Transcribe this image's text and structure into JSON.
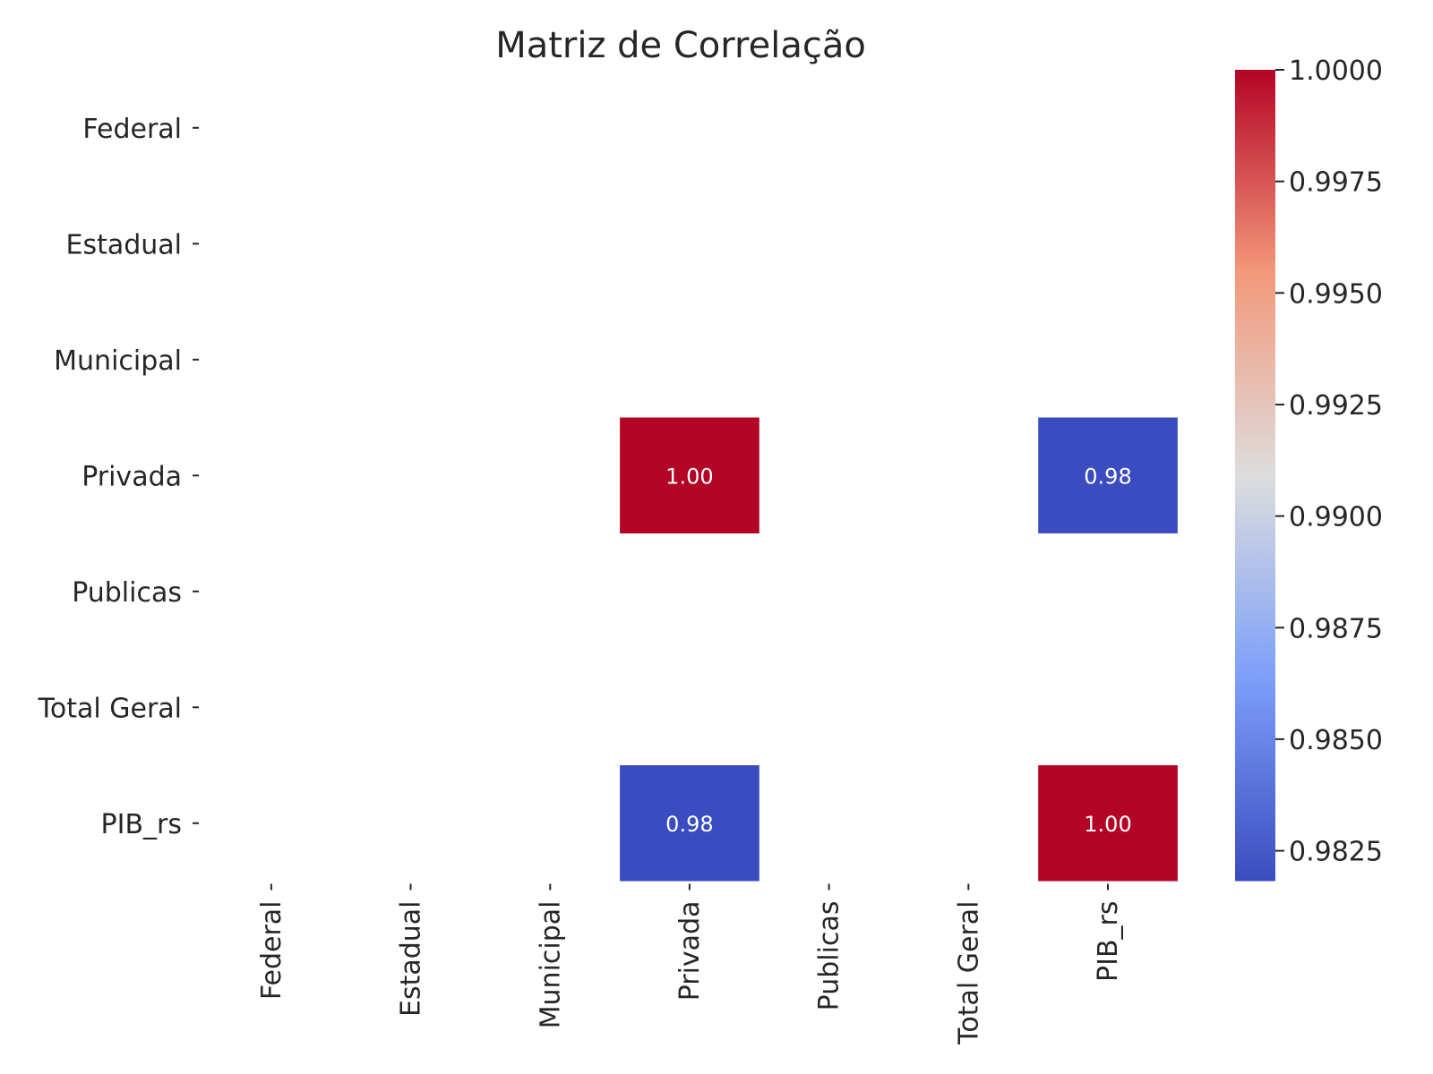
{
  "chart_data": {
    "type": "heatmap",
    "title": "Matriz de Correlação",
    "rows": [
      "Federal",
      "Estadual",
      "Municipal",
      "Privada",
      "Publicas",
      "Total Geral",
      "PIB_rs"
    ],
    "columns": [
      "Federal",
      "Estadual",
      "Municipal",
      "Privada",
      "Publicas",
      "Total Geral",
      "PIB_rs"
    ],
    "values": [
      [
        null,
        null,
        null,
        null,
        null,
        null,
        null
      ],
      [
        null,
        null,
        null,
        null,
        null,
        null,
        null
      ],
      [
        null,
        null,
        null,
        null,
        null,
        null,
        null
      ],
      [
        null,
        null,
        null,
        1.0,
        null,
        null,
        0.98
      ],
      [
        null,
        null,
        null,
        null,
        null,
        null,
        null
      ],
      [
        null,
        null,
        null,
        null,
        null,
        null,
        null
      ],
      [
        null,
        null,
        null,
        0.98,
        null,
        null,
        1.0
      ]
    ],
    "cell_labels": [
      [
        "",
        "",
        "",
        "",
        "",
        "",
        ""
      ],
      [
        "",
        "",
        "",
        "",
        "",
        "",
        ""
      ],
      [
        "",
        "",
        "",
        "",
        "",
        "",
        ""
      ],
      [
        "",
        "",
        "",
        "1.00",
        "",
        "",
        "0.98"
      ],
      [
        "",
        "",
        "",
        "",
        "",
        "",
        ""
      ],
      [
        "",
        "",
        "",
        "",
        "",
        "",
        ""
      ],
      [
        "",
        "",
        "",
        "0.98",
        "",
        "",
        "1.00"
      ]
    ],
    "colormap": "coolwarm",
    "colorbar": {
      "min": 0.98182,
      "max": 1.0,
      "ticks": [
        "1.0000",
        "0.9975",
        "0.9950",
        "0.9925",
        "0.9900",
        "0.9875",
        "0.9850",
        "0.9825"
      ],
      "tick_values": [
        1.0,
        0.9975,
        0.995,
        0.9925,
        0.99,
        0.9875,
        0.985,
        0.9825
      ],
      "position": "right"
    },
    "colors": {
      "high": "#b40426",
      "low": "#3b4cc0",
      "mid": "#dddddd"
    }
  }
}
